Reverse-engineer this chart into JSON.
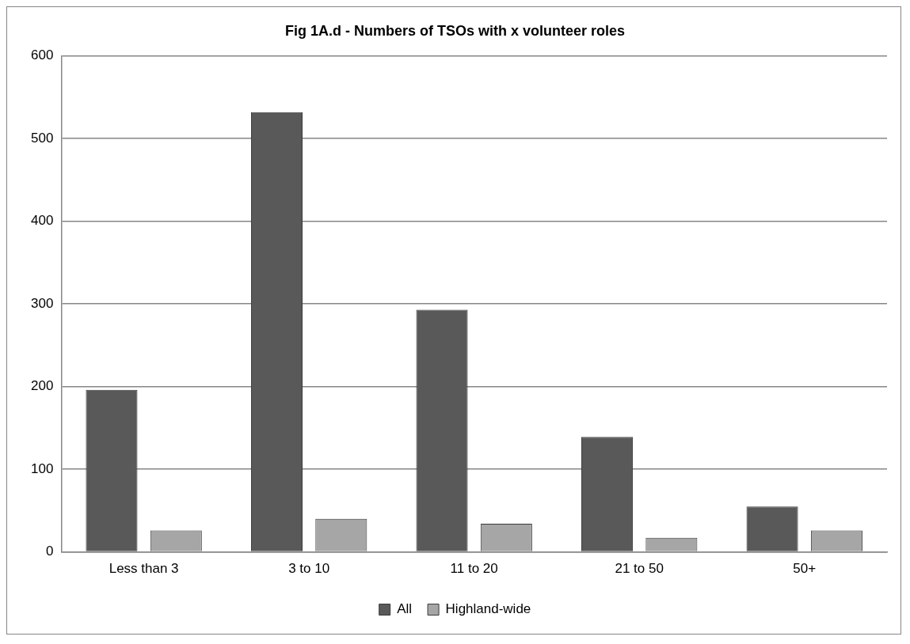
{
  "chart_data": {
    "type": "bar",
    "title": "Fig 1A.d - Numbers of TSOs with x volunteer roles",
    "categories": [
      "Less than 3",
      "3 to 10",
      "11 to 20",
      "21 to 50",
      "50+"
    ],
    "series": [
      {
        "name": "All",
        "color": "#595959",
        "values": [
          196,
          532,
          293,
          139,
          55
        ]
      },
      {
        "name": "Highland-wide",
        "color": "#a6a6a6",
        "values": [
          26,
          40,
          34,
          17,
          26
        ]
      }
    ],
    "ylim": [
      0,
      600
    ],
    "yticks": [
      0,
      100,
      200,
      300,
      400,
      500,
      600
    ],
    "grid": "y",
    "legend": "bottom"
  }
}
